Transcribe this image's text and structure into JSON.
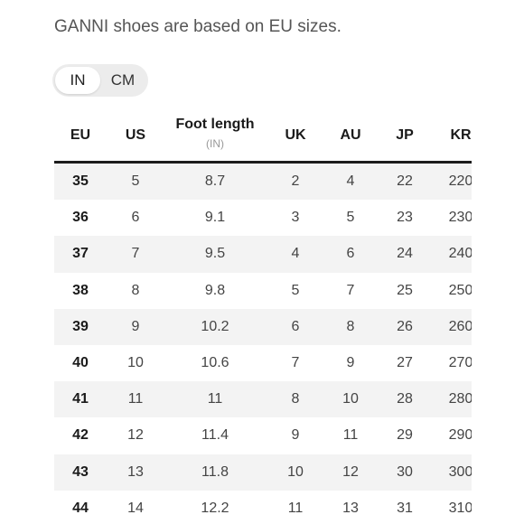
{
  "intro_text": "GANNI shoes are based on EU sizes.",
  "unit_toggle": {
    "options": [
      "IN",
      "CM"
    ],
    "selected": "IN"
  },
  "table": {
    "headers": {
      "eu": "EU",
      "us": "US",
      "foot_length": "Foot length",
      "foot_length_unit": "(IN)",
      "uk": "UK",
      "au": "AU",
      "jp": "JP",
      "kr": "KR"
    },
    "rows": [
      {
        "eu": "35",
        "us": "5",
        "foot": "8.7",
        "uk": "2",
        "au": "4",
        "jp": "22",
        "kr": "220"
      },
      {
        "eu": "36",
        "us": "6",
        "foot": "9.1",
        "uk": "3",
        "au": "5",
        "jp": "23",
        "kr": "230"
      },
      {
        "eu": "37",
        "us": "7",
        "foot": "9.5",
        "uk": "4",
        "au": "6",
        "jp": "24",
        "kr": "240"
      },
      {
        "eu": "38",
        "us": "8",
        "foot": "9.8",
        "uk": "5",
        "au": "7",
        "jp": "25",
        "kr": "250"
      },
      {
        "eu": "39",
        "us": "9",
        "foot": "10.2",
        "uk": "6",
        "au": "8",
        "jp": "26",
        "kr": "260"
      },
      {
        "eu": "40",
        "us": "10",
        "foot": "10.6",
        "uk": "7",
        "au": "9",
        "jp": "27",
        "kr": "270"
      },
      {
        "eu": "41",
        "us": "11",
        "foot": "11",
        "uk": "8",
        "au": "10",
        "jp": "28",
        "kr": "280"
      },
      {
        "eu": "42",
        "us": "12",
        "foot": "11.4",
        "uk": "9",
        "au": "11",
        "jp": "29",
        "kr": "290"
      },
      {
        "eu": "43",
        "us": "13",
        "foot": "11.8",
        "uk": "10",
        "au": "12",
        "jp": "30",
        "kr": "300"
      },
      {
        "eu": "44",
        "us": "14",
        "foot": "12.2",
        "uk": "11",
        "au": "13",
        "jp": "31",
        "kr": "310"
      }
    ]
  }
}
